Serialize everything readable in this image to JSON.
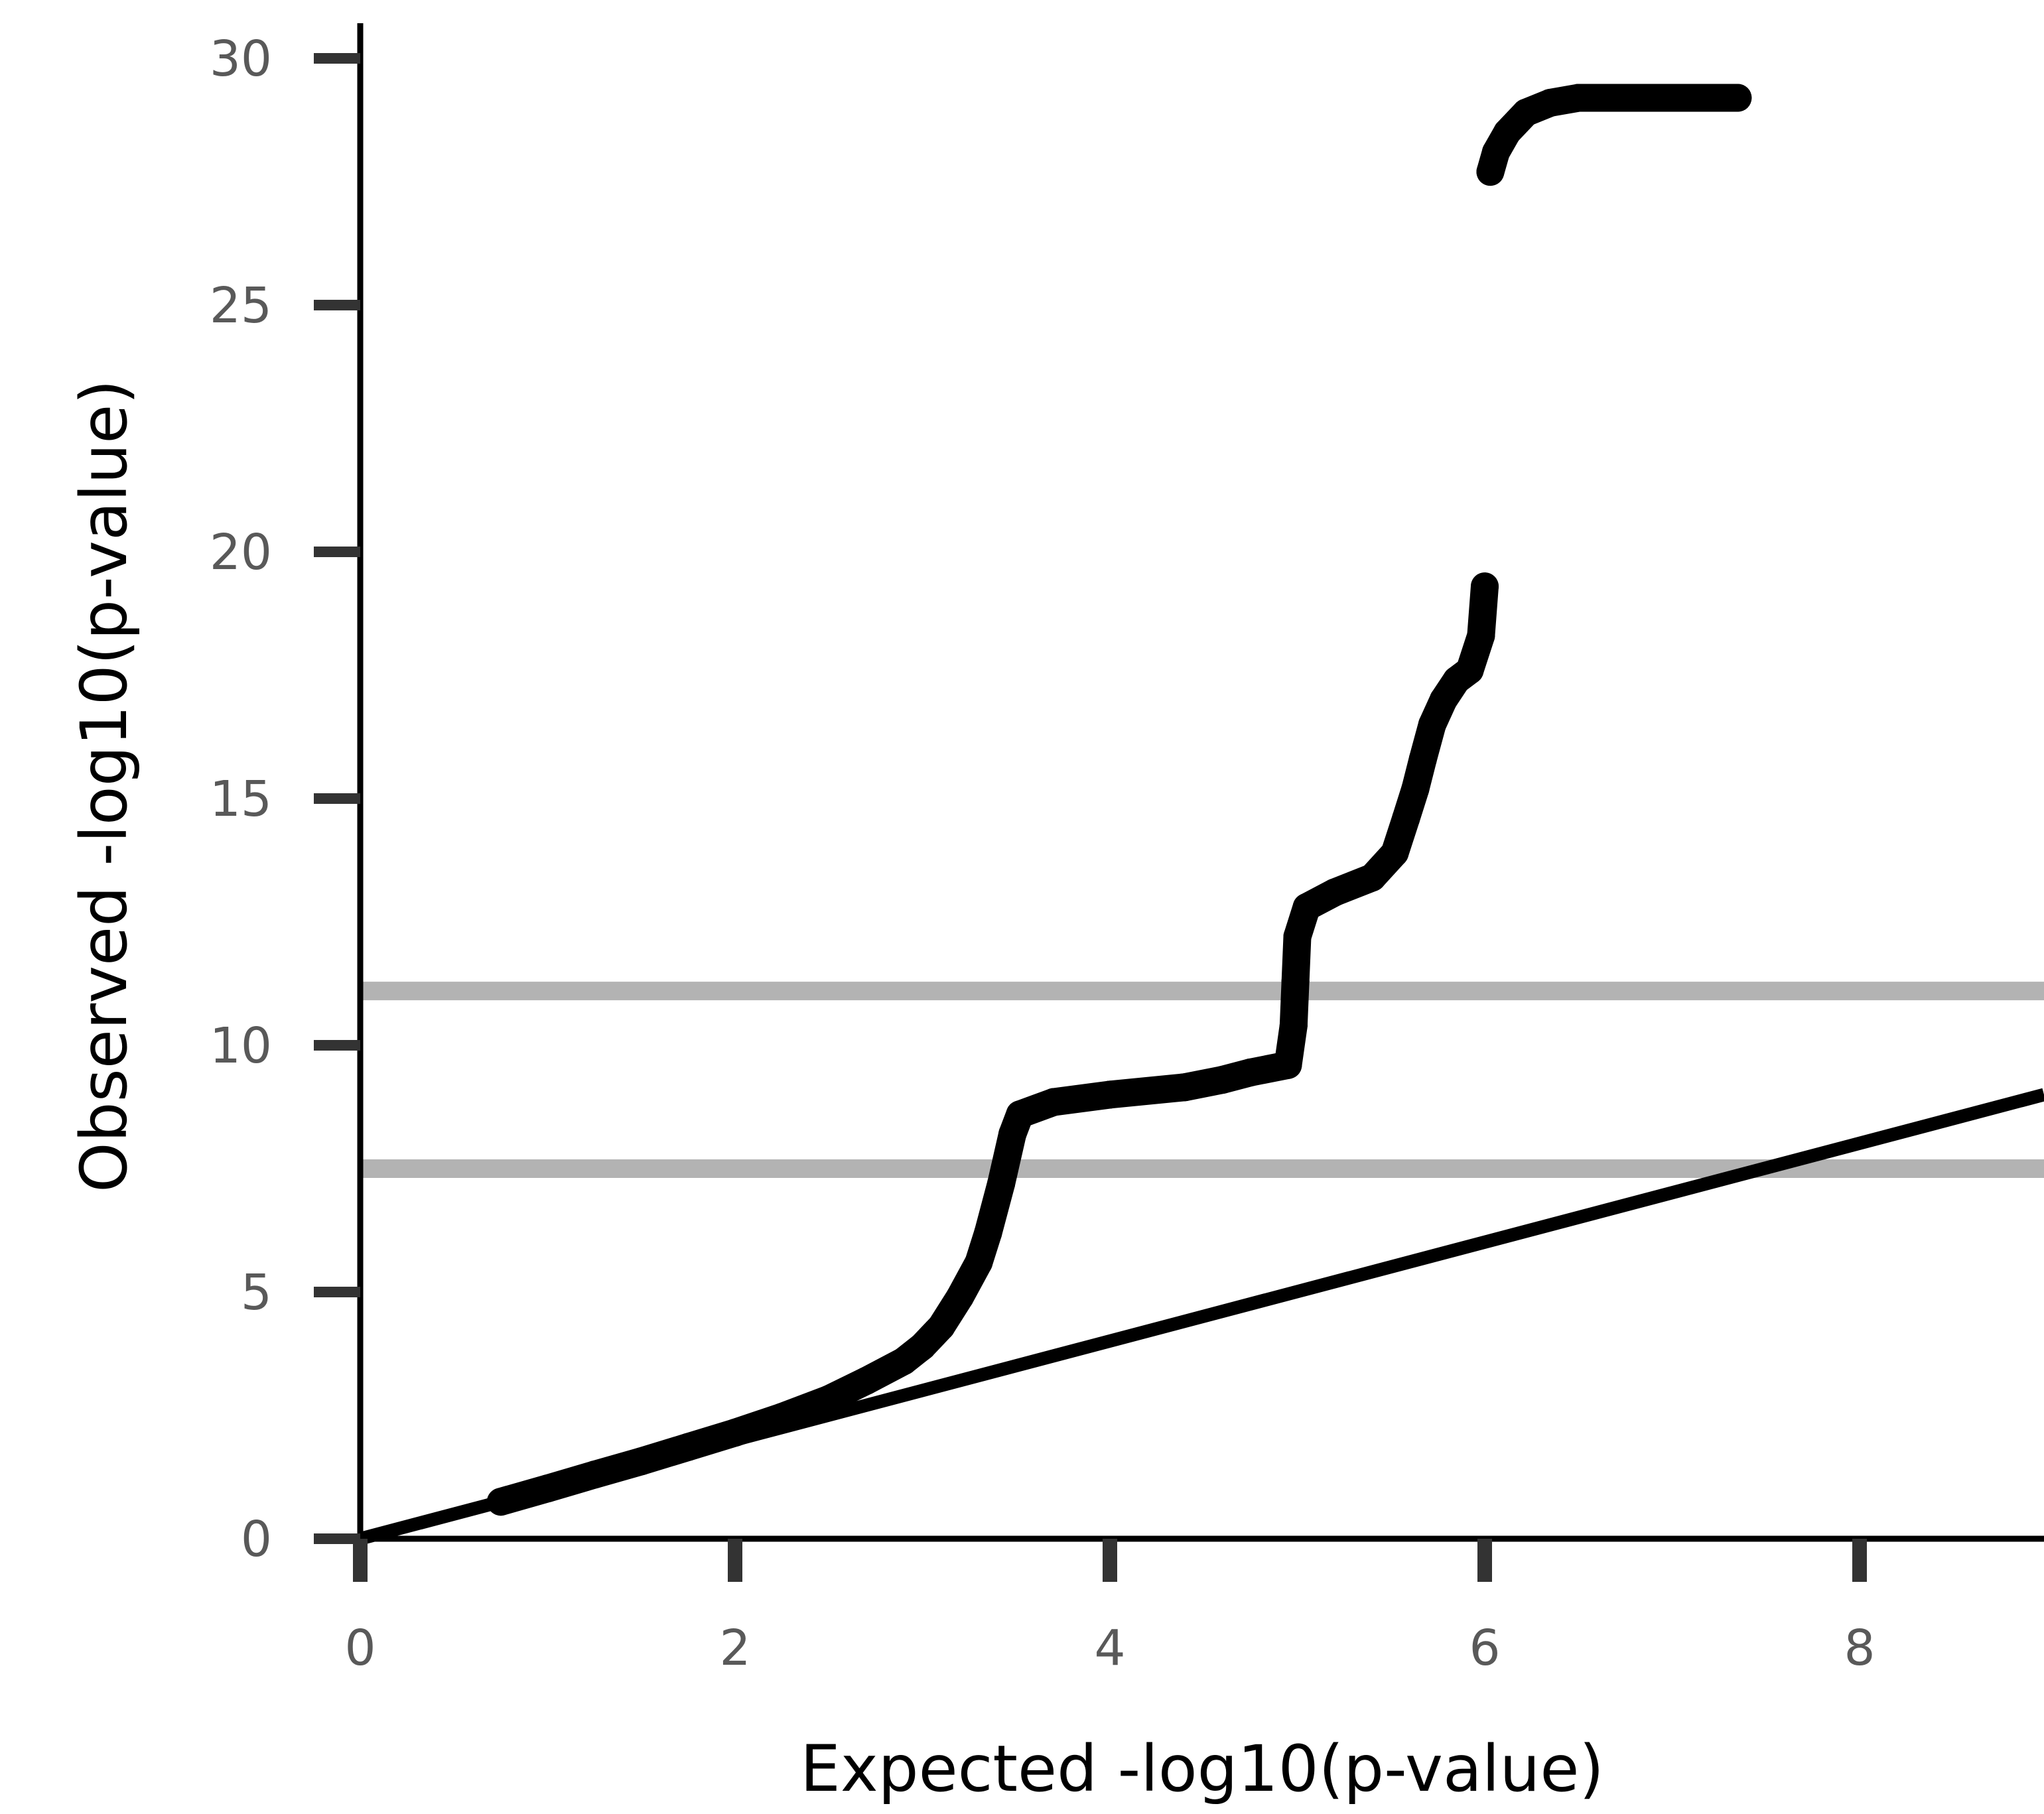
{
  "chart_data": {
    "type": "scatter",
    "xlabel": "Expected -log10(p-value)",
    "ylabel": "Observed -log10(p-value)",
    "xlim": [
      0,
      9
    ],
    "ylim": [
      0,
      30
    ],
    "x_ticks": [
      "0",
      "2",
      "4",
      "6",
      "8"
    ],
    "y_ticks": [
      "0",
      "5",
      "10",
      "15",
      "20",
      "25",
      "30"
    ],
    "grid": false,
    "reference_line": {
      "slope": 1,
      "intercept": 0,
      "color": "#000000"
    },
    "threshold_lines": [
      {
        "y": 7.5,
        "color": "#b3b3b3"
      },
      {
        "y": 11.1,
        "color": "#b3b3b3"
      }
    ],
    "point_color": "#000000",
    "points": [
      [
        0.75,
        0.75
      ],
      [
        1.0,
        1.02
      ],
      [
        1.25,
        1.3
      ],
      [
        1.5,
        1.57
      ],
      [
        1.75,
        1.86
      ],
      [
        2.0,
        2.15
      ],
      [
        2.25,
        2.47
      ],
      [
        2.5,
        2.83
      ],
      [
        2.7,
        3.2
      ],
      [
        2.9,
        3.6
      ],
      [
        3.0,
        3.9
      ],
      [
        3.1,
        4.3
      ],
      [
        3.2,
        4.9
      ],
      [
        3.3,
        5.6
      ],
      [
        3.35,
        6.2
      ],
      [
        3.42,
        7.2
      ],
      [
        3.48,
        8.2
      ],
      [
        3.52,
        8.6
      ],
      [
        3.7,
        8.85
      ],
      [
        4.0,
        9.0
      ],
      [
        4.4,
        9.15
      ],
      [
        4.6,
        9.3
      ],
      [
        4.75,
        9.45
      ],
      [
        4.95,
        9.6
      ],
      [
        4.98,
        10.4
      ],
      [
        4.99,
        11.3
      ],
      [
        5.0,
        12.2
      ],
      [
        5.05,
        12.8
      ],
      [
        5.2,
        13.1
      ],
      [
        5.4,
        13.4
      ],
      [
        5.52,
        13.9
      ],
      [
        5.58,
        14.6
      ],
      [
        5.63,
        15.2
      ],
      [
        5.67,
        15.8
      ],
      [
        5.72,
        16.5
      ],
      [
        5.78,
        17.0
      ],
      [
        5.85,
        17.4
      ],
      [
        5.92,
        17.6
      ],
      [
        5.98,
        18.3
      ],
      [
        6.0,
        19.3
      ],
      [
        6.03,
        27.7
      ],
      [
        6.06,
        28.1
      ],
      [
        6.12,
        28.5
      ],
      [
        6.22,
        28.9
      ],
      [
        6.35,
        29.1
      ],
      [
        6.5,
        29.2
      ],
      [
        6.65,
        29.2
      ],
      [
        6.9,
        29.2
      ],
      [
        7.35,
        29.2
      ]
    ]
  }
}
